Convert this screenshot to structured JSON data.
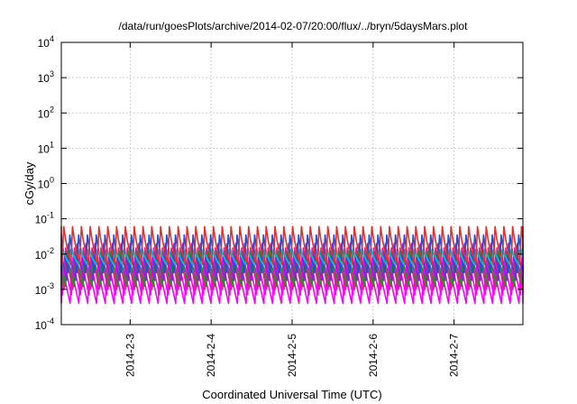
{
  "chart_data": {
    "type": "line",
    "title": "/data/run/goesPlots/archive/2014-02-07/20:00/flux/../bryn/5daysMars.plot",
    "xlabel": "Coordinated Universal Time (UTC)",
    "ylabel": "cGy/day",
    "yscale": "log",
    "ylim_exponents": [
      -4,
      4
    ],
    "ytick_base": "10",
    "ytick_exponents": [
      "-4",
      "-3",
      "-2",
      "-1",
      "0",
      "1",
      "2",
      "3",
      "4"
    ],
    "xlim_days": [
      1.15,
      6.85
    ],
    "xticks": [
      {
        "day": 2,
        "label": "2014-2-3"
      },
      {
        "day": 3,
        "label": "2014-2-4"
      },
      {
        "day": 4,
        "label": "2014-2-5"
      },
      {
        "day": 5,
        "label": "2014-2-6"
      },
      {
        "day": 6,
        "label": "2014-2-7"
      }
    ],
    "grid": true,
    "oscillation_cycles_per_day": 9.2,
    "series": [
      {
        "color": "#ff00ff",
        "peak": 0.005,
        "trough": 0.0004
      },
      {
        "color": "#ff00ff",
        "peak": 0.008,
        "trough": 0.0007
      },
      {
        "color": "#e0208a",
        "peak": 0.015,
        "trough": 0.001
      },
      {
        "color": "#2a8a2a",
        "peak": 0.012,
        "trough": 0.0012
      },
      {
        "color": "#7a2ad8",
        "peak": 0.02,
        "trough": 0.0018
      },
      {
        "color": "#2050d8",
        "peak": 0.035,
        "trough": 0.003
      },
      {
        "color": "#00c8c8",
        "peak": 0.014,
        "trough": 0.005
      },
      {
        "color": "#e03030",
        "peak": 0.06,
        "trough": 0.005
      }
    ]
  }
}
